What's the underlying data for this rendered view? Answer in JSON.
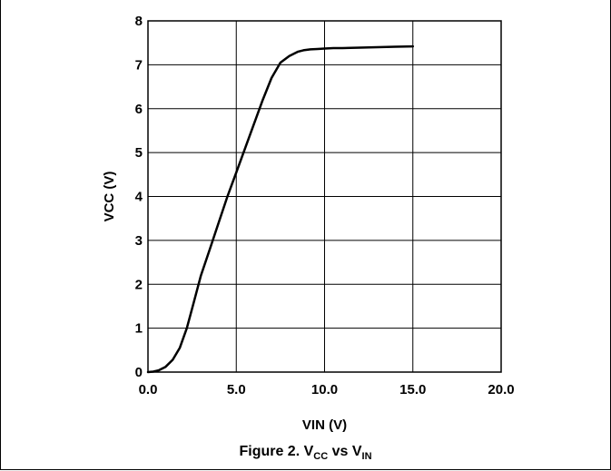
{
  "chart_data": {
    "type": "line",
    "title": "",
    "xlabel": "VIN (V)",
    "ylabel": "VCC (V)",
    "xlim": [
      0,
      20
    ],
    "ylim": [
      0,
      8
    ],
    "x_ticks": [
      "0.0",
      "5.0",
      "10.0",
      "15.0",
      "20.0"
    ],
    "y_ticks": [
      "0",
      "1",
      "2",
      "3",
      "4",
      "5",
      "6",
      "7",
      "8"
    ],
    "grid": true,
    "legend": "none",
    "series": [
      {
        "color": "#000000",
        "x": [
          0.0,
          0.3,
          0.6,
          1.0,
          1.4,
          1.8,
          2.2,
          2.6,
          3.0,
          3.5,
          4.0,
          4.5,
          5.0,
          5.5,
          6.0,
          6.5,
          7.0,
          7.5,
          8.0,
          8.5,
          8.8,
          9.2,
          9.6,
          10.0,
          10.5,
          11.0,
          12.0,
          13.0,
          14.0,
          15.0
        ],
        "y": [
          0.0,
          0.01,
          0.04,
          0.12,
          0.28,
          0.55,
          1.0,
          1.6,
          2.2,
          2.8,
          3.4,
          4.0,
          4.55,
          5.1,
          5.65,
          6.2,
          6.7,
          7.05,
          7.2,
          7.3,
          7.33,
          7.35,
          7.36,
          7.37,
          7.38,
          7.38,
          7.39,
          7.4,
          7.41,
          7.42
        ]
      }
    ]
  },
  "caption": {
    "prefix": "Figure 2. V",
    "sub1": "CC",
    "mid": " vs V",
    "sub2": "IN"
  }
}
